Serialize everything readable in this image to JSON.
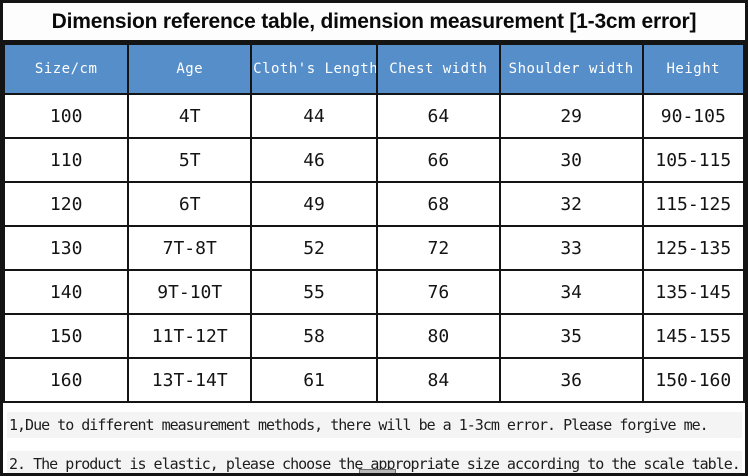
{
  "title": "Dimension reference table, dimension measurement [1-3cm error]",
  "table": {
    "headers": [
      "Size/cm",
      "Age",
      "Cloth's Length",
      "Chest width",
      "Shoulder width",
      "Height"
    ],
    "columns": [
      "Size/cm",
      "Age",
      "Cloth's Length",
      "Chest width",
      "Shoulder width",
      "Height"
    ],
    "rows": [
      [
        "100",
        "4T",
        "44",
        "64",
        "29",
        "90-105"
      ],
      [
        "110",
        "5T",
        "46",
        "66",
        "30",
        "105-115"
      ],
      [
        "120",
        "6T",
        "49",
        "68",
        "32",
        "115-125"
      ],
      [
        "130",
        "7T-8T",
        "52",
        "72",
        "33",
        "125-135"
      ],
      [
        "140",
        "9T-10T",
        "55",
        "76",
        "34",
        "135-145"
      ],
      [
        "150",
        "11T-12T",
        "58",
        "80",
        "35",
        "145-155"
      ],
      [
        "160",
        "13T-14T",
        "61",
        "84",
        "36",
        "150-160"
      ]
    ]
  },
  "notes": [
    "1,Due to different measurement methods, there will be a 1-3cm error. Please forgive me.",
    "2. The product is elastic, please choose the appropriate size according to the scale table."
  ],
  "colors": {
    "header_bg": "#568ec9",
    "header_text": "#ffffff",
    "border": "#141414",
    "note_band_bg": "#f4f4f4",
    "body_text": "#141414"
  }
}
